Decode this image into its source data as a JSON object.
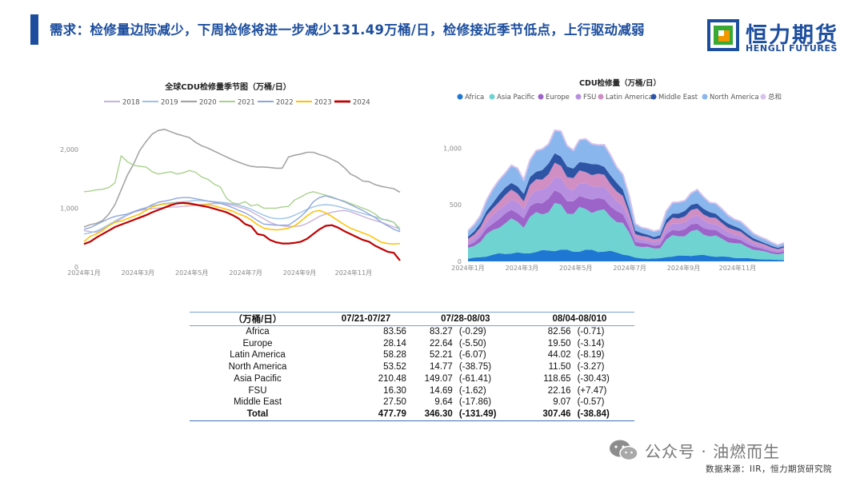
{
  "header": {
    "title": "需求：检修量边际减少，下周检修将进一步减少131.49万桶/日，检修接近季节低点，上行驱动减弱"
  },
  "logo": {
    "name_cn": "恒力期货",
    "name_en": "HENGLI FUTURES"
  },
  "colors": {
    "brand_blue": "#1d4e9e",
    "logo_green": "#39a935",
    "logo_orange": "#f39800"
  },
  "chart_data": [
    {
      "type": "line",
      "title": "全球CDU检修量季节图（万桶/日）",
      "legend_position": "top",
      "ylim": [
        0,
        2500
      ],
      "yticks": [
        "0",
        "1,000",
        "2,000"
      ],
      "ytick_values": [
        0,
        1000,
        2000
      ],
      "xticks": [
        "2024年1月",
        "2024年3月",
        "2024年5月",
        "2024年7月",
        "2024年9月",
        "2024年11月"
      ],
      "xtick_weeks": [
        0,
        8.7,
        17.4,
        26.1,
        34.8,
        43.5
      ],
      "x_weeks": 52,
      "grid": false,
      "series": [
        {
          "name": "2018",
          "color": "#c9b1d9",
          "width": 1.4,
          "values": [
            620,
            600,
            590,
            640,
            700,
            760,
            820,
            880,
            930,
            960,
            980,
            990,
            1000,
            1010,
            1020,
            1020,
            1030,
            1040,
            1050,
            1060,
            1070,
            1080,
            1080,
            1070,
            1050,
            1020,
            990,
            940,
            880,
            820,
            760,
            720,
            700,
            690,
            690,
            700,
            740,
            800,
            860,
            900,
            930,
            950,
            960,
            940,
            900,
            860,
            820,
            790,
            760,
            720,
            680,
            650
          ]
        },
        {
          "name": "2019",
          "color": "#9dc3e6",
          "width": 1.4,
          "values": [
            560,
            580,
            610,
            660,
            720,
            780,
            840,
            890,
            940,
            980,
            1010,
            1040,
            1060,
            1080,
            1090,
            1100,
            1110,
            1120,
            1130,
            1130,
            1120,
            1110,
            1100,
            1090,
            1070,
            1050,
            1020,
            980,
            930,
            880,
            840,
            820,
            820,
            840,
            880,
            930,
            980,
            1020,
            1050,
            1060,
            1050,
            1030,
            1000,
            970,
            940,
            910,
            880,
            850,
            820,
            790,
            760,
            620
          ]
        },
        {
          "name": "2020",
          "color": "#a5a5a5",
          "width": 1.6,
          "values": [
            680,
            720,
            740,
            790,
            900,
            1060,
            1310,
            1560,
            1750,
            1980,
            2130,
            2260,
            2320,
            2340,
            2300,
            2260,
            2230,
            2200,
            2120,
            2060,
            2020,
            1970,
            1920,
            1870,
            1820,
            1780,
            1740,
            1710,
            1700,
            1700,
            1690,
            1680,
            1680,
            1870,
            1900,
            1920,
            1950,
            1950,
            1910,
            1880,
            1830,
            1780,
            1690,
            1580,
            1530,
            1460,
            1450,
            1400,
            1370,
            1350,
            1330,
            1270
          ]
        },
        {
          "name": "2021",
          "color": "#a9d18e",
          "width": 1.4,
          "values": [
            1280,
            1290,
            1310,
            1320,
            1350,
            1430,
            1890,
            1790,
            1730,
            1710,
            1700,
            1620,
            1580,
            1600,
            1620,
            1580,
            1600,
            1640,
            1610,
            1530,
            1490,
            1410,
            1360,
            1170,
            1090,
            1070,
            1110,
            1040,
            1060,
            1000,
            1000,
            1000,
            1020,
            1030,
            1140,
            1190,
            1250,
            1280,
            1250,
            1220,
            1190,
            1150,
            1120,
            1080,
            1040,
            1000,
            960,
            900,
            810,
            800,
            760,
            650
          ]
        },
        {
          "name": "2022",
          "color": "#8fa6dc",
          "width": 1.4,
          "values": [
            640,
            670,
            720,
            770,
            820,
            860,
            880,
            900,
            940,
            970,
            1000,
            1060,
            1100,
            1120,
            1140,
            1170,
            1180,
            1180,
            1160,
            1140,
            1120,
            1100,
            1080,
            1050,
            1010,
            960,
            920,
            860,
            790,
            730,
            720,
            710,
            710,
            710,
            780,
            860,
            960,
            1110,
            1180,
            1210,
            1180,
            1150,
            1110,
            1060,
            1010,
            960,
            900,
            840,
            760,
            700,
            640,
            600
          ]
        },
        {
          "name": "2023",
          "color": "#ffc000",
          "width": 1.5,
          "values": [
            430,
            520,
            560,
            620,
            700,
            760,
            780,
            820,
            860,
            900,
            960,
            1020,
            1050,
            1070,
            1080,
            1080,
            1080,
            1070,
            1060,
            1050,
            1060,
            1040,
            1010,
            980,
            950,
            900,
            860,
            800,
            720,
            660,
            640,
            630,
            640,
            660,
            700,
            780,
            870,
            940,
            960,
            920,
            860,
            790,
            720,
            660,
            620,
            580,
            540,
            480,
            420,
            400,
            390,
            400
          ]
        },
        {
          "name": "2024",
          "color": "#c00000",
          "width": 2.2,
          "values": [
            390,
            430,
            500,
            560,
            620,
            680,
            720,
            760,
            800,
            840,
            880,
            930,
            970,
            1010,
            1050,
            1080,
            1090,
            1080,
            1060,
            1040,
            1020,
            990,
            960,
            930,
            880,
            820,
            730,
            690,
            560,
            540,
            460,
            420,
            400,
            400,
            410,
            430,
            480,
            560,
            640,
            700,
            710,
            670,
            610,
            560,
            510,
            460,
            430,
            360,
            310,
            260,
            240,
            110
          ]
        }
      ]
    },
    {
      "type": "area",
      "title": "CDU检修量（万桶/日）",
      "legend_position": "top",
      "ylim": [
        0,
        1250
      ],
      "yticks": [
        "0",
        "500",
        "1,000"
      ],
      "ytick_values": [
        0,
        500,
        1000
      ],
      "xticks": [
        "2024年1月",
        "2024年3月",
        "2024年5月",
        "2024年7月",
        "2024年9月",
        "2024年11月"
      ],
      "xtick_weeks": [
        0,
        8.7,
        17.4,
        26.1,
        34.8,
        43.5
      ],
      "x_weeks": 52,
      "grid": false,
      "stacked": true,
      "total_envelope": [
        260,
        330,
        420,
        530,
        620,
        740,
        800,
        820,
        810,
        750,
        900,
        940,
        1000,
        1080,
        1140,
        1110,
        1050,
        1010,
        1040,
        1060,
        1080,
        1040,
        990,
        940,
        870,
        760,
        560,
        340,
        310,
        280,
        260,
        290,
        450,
        500,
        520,
        560,
        600,
        610,
        580,
        540,
        500,
        450,
        420,
        380,
        340,
        300,
        260,
        220,
        190,
        170,
        150,
        160
      ],
      "series": [
        {
          "name": "Africa",
          "color": "#1f77d4",
          "share": 0.09
        },
        {
          "name": "Asia Pacific",
          "color": "#6fd3d1",
          "share": 0.34
        },
        {
          "name": "Europe",
          "color": "#9c64c8",
          "share": 0.1
        },
        {
          "name": "FSU",
          "color": "#b78fe0",
          "share": 0.11
        },
        {
          "name": "Latin America",
          "color": "#d08ec3",
          "share": 0.1
        },
        {
          "name": "Middle East",
          "color": "#2e55a5",
          "share": 0.08
        },
        {
          "name": "North America",
          "color": "#8ab6ee",
          "share": 0.18
        },
        {
          "name": "总和",
          "color": "#d7c3ec",
          "share": 0.0
        }
      ]
    }
  ],
  "table": {
    "headers": [
      "（万桶/日）",
      "07/21-07/27",
      "07/28-08/03",
      "08/04-08/010"
    ],
    "rows": [
      {
        "name": "Africa",
        "v1": "83.56",
        "v2": "83.27",
        "c2": "(-0.29)",
        "v3": "82.56",
        "c3": "(-0.71)"
      },
      {
        "name": "Europe",
        "v1": "28.14",
        "v2": "22.64",
        "c2": "(-5.50)",
        "v3": "19.50",
        "c3": "(-3.14)"
      },
      {
        "name": "Latin America",
        "v1": "58.28",
        "v2": "52.21",
        "c2": "(-6.07)",
        "v3": "44.02",
        "c3": "(-8.19)"
      },
      {
        "name": "North America",
        "v1": "53.52",
        "v2": "14.77",
        "c2": "(-38.75)",
        "v3": "11.50",
        "c3": "(-3.27)"
      },
      {
        "name": "Asia Pacific",
        "v1": "210.48",
        "v2": "149.07",
        "c2": "(-61.41)",
        "v3": "118.65",
        "c3": "(-30.43)"
      },
      {
        "name": "FSU",
        "v1": "16.30",
        "v2": "14.69",
        "c2": "(-1.62)",
        "v3": "22.16",
        "c3": "(+7.47)"
      },
      {
        "name": "Middle East",
        "v1": "27.50",
        "v2": "9.64",
        "c2": "(-17.86)",
        "v3": "9.07",
        "c3": "(-0.57)"
      },
      {
        "name": "Total",
        "v1": "477.79",
        "v2": "346.30",
        "c2": "(-131.49)",
        "v3": "307.46",
        "c3": "(-38.84)"
      }
    ]
  },
  "watermark": {
    "text": "公众号 · 油燃而生",
    "icon": "wechat-icon"
  },
  "footer": {
    "source": "数据来源：IIR，恒力期货研究院"
  }
}
